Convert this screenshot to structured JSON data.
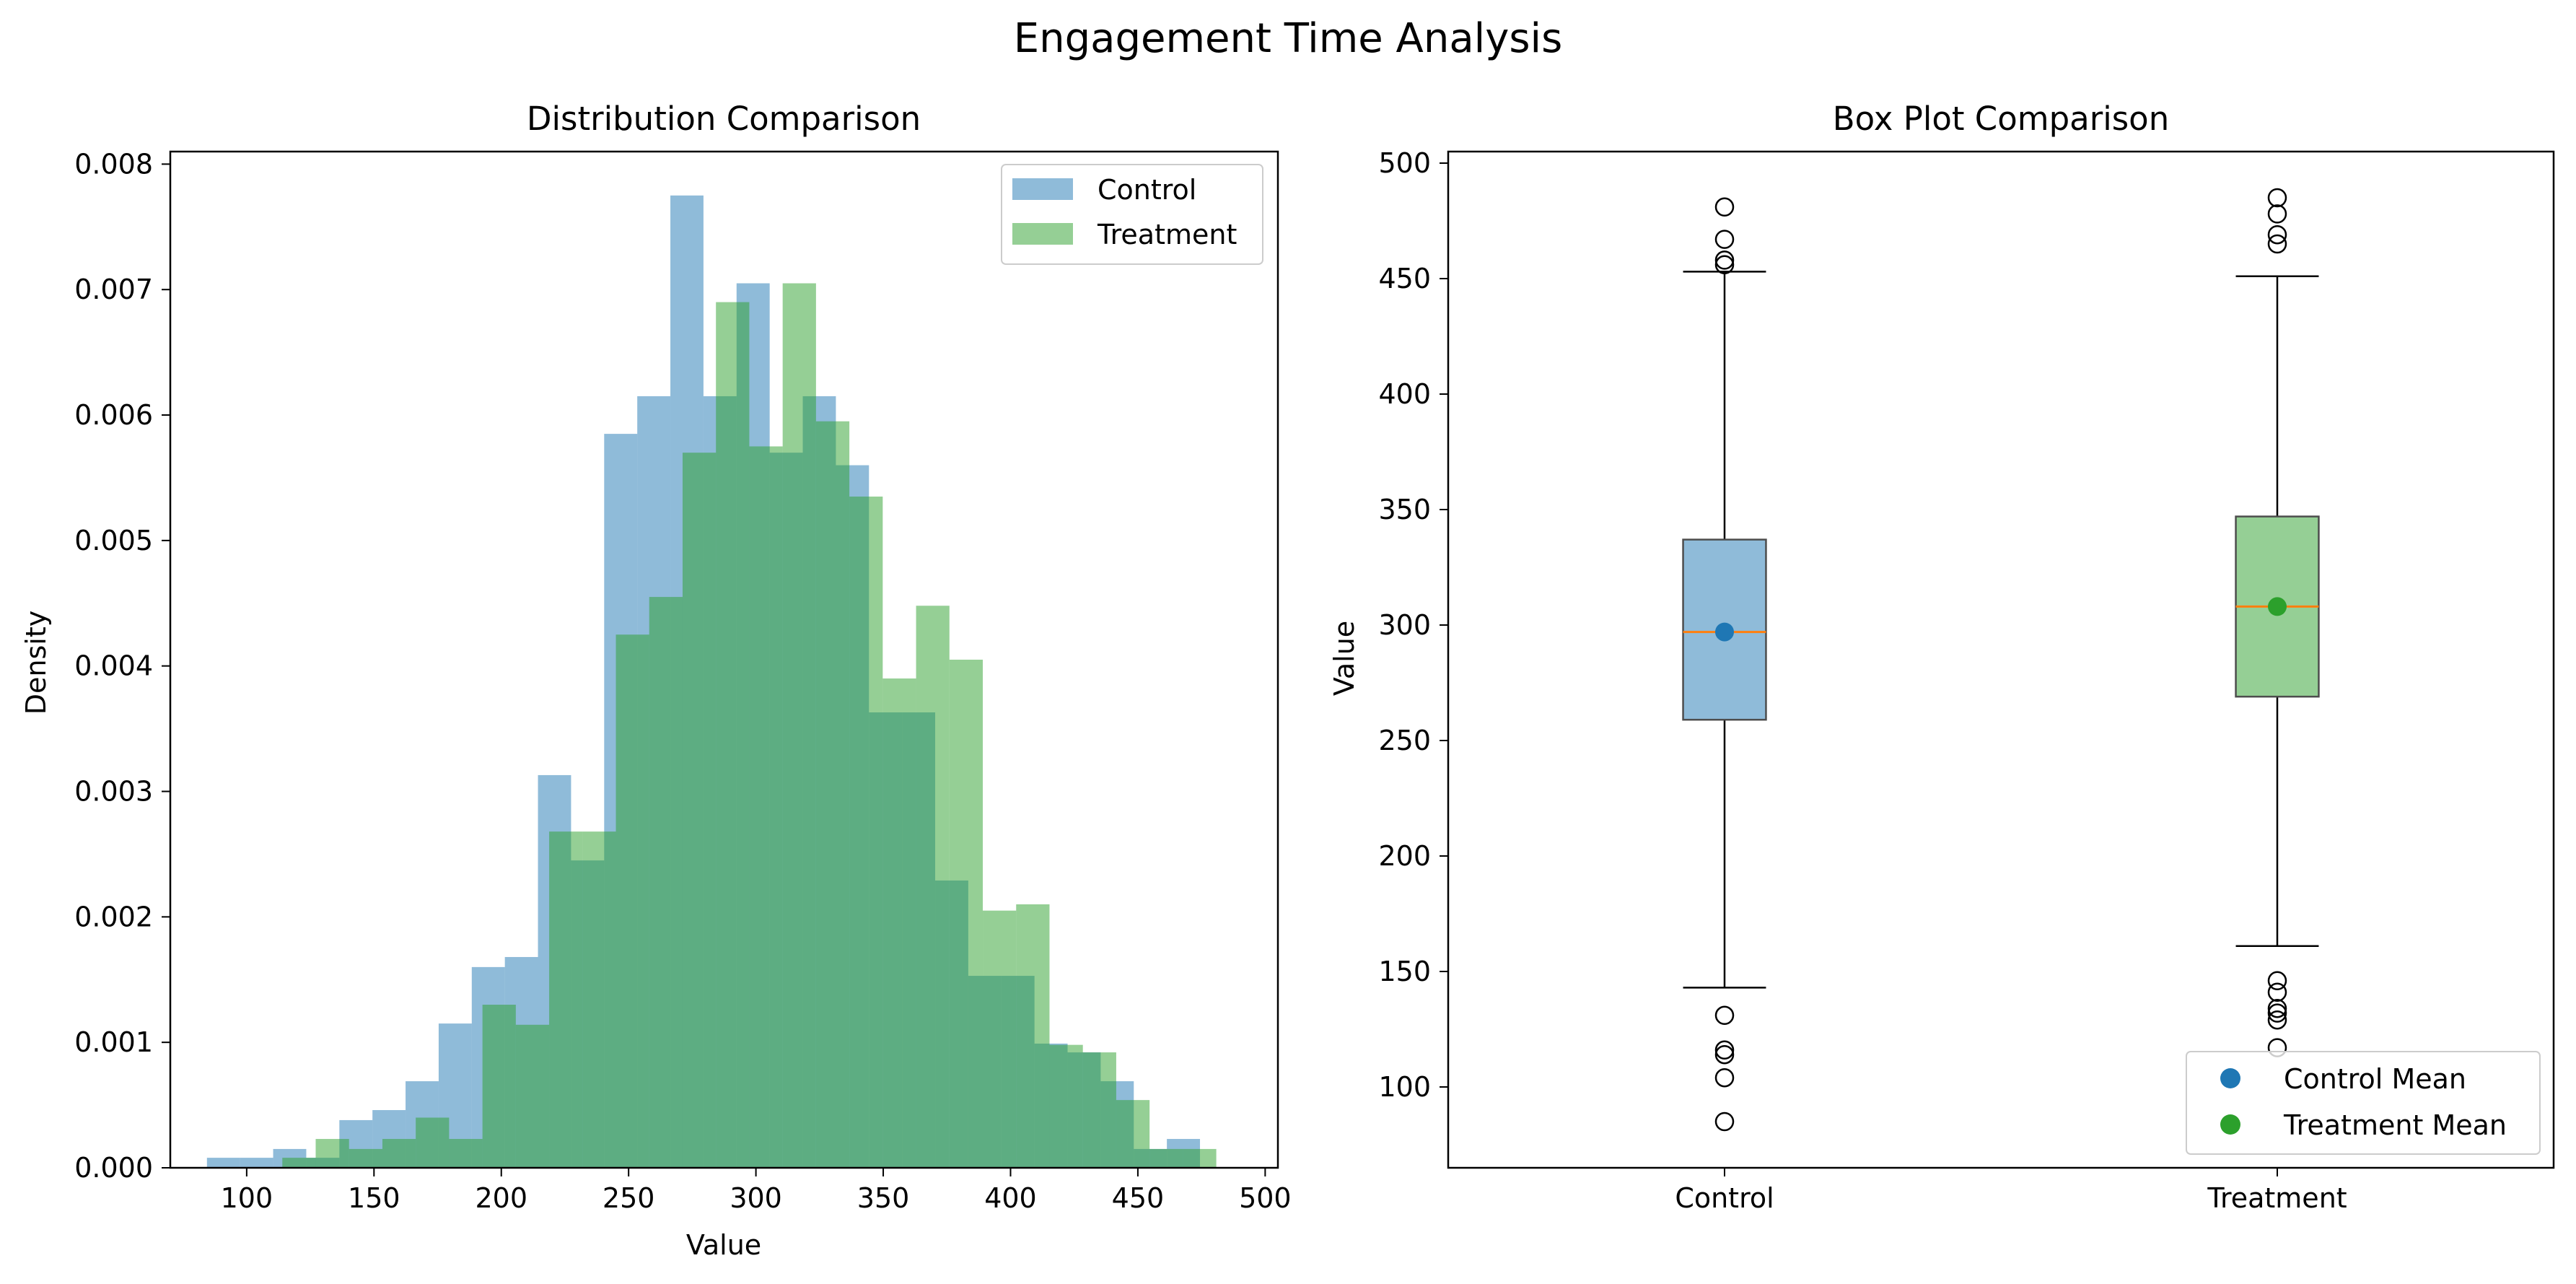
{
  "figure": {
    "title": "Engagement Time Analysis"
  },
  "colors": {
    "control": "#1f77b4",
    "treatment": "#2ca02c",
    "control_fill": "#8fbbd9",
    "treatment_fill": "#95cf95",
    "overlap": "#5bad80",
    "median": "#ff7f0e"
  },
  "chart_data": [
    {
      "type": "histogram",
      "title": "Distribution Comparison",
      "xlabel": "Value",
      "ylabel": "Density",
      "xlim": [
        70,
        505
      ],
      "ylim": [
        0,
        0.0081
      ],
      "xticks": [
        100,
        150,
        200,
        250,
        300,
        350,
        400,
        450,
        500
      ],
      "yticks": [
        0.0,
        0.001,
        0.002,
        0.003,
        0.004,
        0.005,
        0.006,
        0.007,
        0.008
      ],
      "ytick_labels": [
        "0.000",
        "0.001",
        "0.002",
        "0.003",
        "0.004",
        "0.005",
        "0.006",
        "0.007",
        "0.008"
      ],
      "grid": false,
      "legend": {
        "position": "top-right",
        "entries": [
          "Control",
          "Treatment"
        ]
      },
      "series": [
        {
          "name": "Control",
          "color_key": "control",
          "bins": [
            {
              "x0": 84.4,
              "x1": 97.4,
              "density": 8e-05
            },
            {
              "x0": 97.4,
              "x1": 110.4,
              "density": 8e-05
            },
            {
              "x0": 110.4,
              "x1": 123.4,
              "density": 0.00015
            },
            {
              "x0": 123.4,
              "x1": 136.4,
              "density": 8e-05
            },
            {
              "x0": 136.4,
              "x1": 149.4,
              "density": 0.00038
            },
            {
              "x0": 149.4,
              "x1": 162.4,
              "density": 0.00046
            },
            {
              "x0": 162.4,
              "x1": 175.4,
              "density": 0.00069
            },
            {
              "x0": 175.4,
              "x1": 188.4,
              "density": 0.00115
            },
            {
              "x0": 188.4,
              "x1": 201.4,
              "density": 0.0016
            },
            {
              "x0": 201.4,
              "x1": 214.4,
              "density": 0.00168
            },
            {
              "x0": 214.4,
              "x1": 227.4,
              "density": 0.00313
            },
            {
              "x0": 227.4,
              "x1": 240.4,
              "density": 0.00245
            },
            {
              "x0": 240.4,
              "x1": 253.4,
              "density": 0.00585
            },
            {
              "x0": 253.4,
              "x1": 266.4,
              "density": 0.00615
            },
            {
              "x0": 266.4,
              "x1": 279.4,
              "density": 0.00775
            },
            {
              "x0": 279.4,
              "x1": 292.4,
              "density": 0.00615
            },
            {
              "x0": 292.4,
              "x1": 305.4,
              "density": 0.00705
            },
            {
              "x0": 305.4,
              "x1": 318.4,
              "density": 0.0057
            },
            {
              "x0": 318.4,
              "x1": 331.4,
              "density": 0.00615
            },
            {
              "x0": 331.4,
              "x1": 344.4,
              "density": 0.0056
            },
            {
              "x0": 344.4,
              "x1": 357.4,
              "density": 0.00363
            },
            {
              "x0": 357.4,
              "x1": 370.4,
              "density": 0.00363
            },
            {
              "x0": 370.4,
              "x1": 383.4,
              "density": 0.00229
            },
            {
              "x0": 383.4,
              "x1": 396.4,
              "density": 0.00153
            },
            {
              "x0": 396.4,
              "x1": 409.4,
              "density": 0.00153
            },
            {
              "x0": 409.4,
              "x1": 422.4,
              "density": 0.00099
            },
            {
              "x0": 422.4,
              "x1": 435.4,
              "density": 0.00092
            },
            {
              "x0": 435.4,
              "x1": 448.4,
              "density": 0.00069
            },
            {
              "x0": 448.4,
              "x1": 461.4,
              "density": 0.00015
            },
            {
              "x0": 461.4,
              "x1": 474.4,
              "density": 0.00023
            }
          ]
        },
        {
          "name": "Treatment",
          "color_key": "treatment",
          "bins": [
            {
              "x0": 114.0,
              "x1": 127.1,
              "density": 8e-05
            },
            {
              "x0": 127.1,
              "x1": 140.2,
              "density": 0.00023
            },
            {
              "x0": 140.2,
              "x1": 153.3,
              "density": 0.00015
            },
            {
              "x0": 153.3,
              "x1": 166.4,
              "density": 0.00023
            },
            {
              "x0": 166.4,
              "x1": 179.5,
              "density": 0.0004
            },
            {
              "x0": 179.5,
              "x1": 192.6,
              "density": 0.00023
            },
            {
              "x0": 192.6,
              "x1": 205.7,
              "density": 0.0013
            },
            {
              "x0": 205.7,
              "x1": 218.8,
              "density": 0.00114
            },
            {
              "x0": 218.8,
              "x1": 231.9,
              "density": 0.00268
            },
            {
              "x0": 231.9,
              "x1": 245.0,
              "density": 0.00268
            },
            {
              "x0": 245.0,
              "x1": 258.1,
              "density": 0.00425
            },
            {
              "x0": 258.1,
              "x1": 271.2,
              "density": 0.00455
            },
            {
              "x0": 271.2,
              "x1": 284.3,
              "density": 0.0057
            },
            {
              "x0": 284.3,
              "x1": 297.4,
              "density": 0.0069
            },
            {
              "x0": 297.4,
              "x1": 310.5,
              "density": 0.00575
            },
            {
              "x0": 310.5,
              "x1": 323.6,
              "density": 0.00705
            },
            {
              "x0": 323.6,
              "x1": 336.7,
              "density": 0.00595
            },
            {
              "x0": 336.7,
              "x1": 349.8,
              "density": 0.00535
            },
            {
              "x0": 349.8,
              "x1": 362.9,
              "density": 0.0039
            },
            {
              "x0": 362.9,
              "x1": 376.0,
              "density": 0.00448
            },
            {
              "x0": 376.0,
              "x1": 389.1,
              "density": 0.00405
            },
            {
              "x0": 389.1,
              "x1": 402.2,
              "density": 0.00205
            },
            {
              "x0": 402.2,
              "x1": 415.3,
              "density": 0.0021
            },
            {
              "x0": 415.3,
              "x1": 428.4,
              "density": 0.00098
            },
            {
              "x0": 428.4,
              "x1": 441.5,
              "density": 0.00092
            },
            {
              "x0": 441.5,
              "x1": 454.6,
              "density": 0.00054
            },
            {
              "x0": 454.6,
              "x1": 467.7,
              "density": 0.00015
            },
            {
              "x0": 467.7,
              "x1": 480.8,
              "density": 0.00015
            }
          ]
        }
      ]
    },
    {
      "type": "box",
      "title": "Box Plot Comparison",
      "xlabel": "",
      "ylabel": "Value",
      "categories": [
        "Control",
        "Treatment"
      ],
      "ylim": [
        65,
        505
      ],
      "yticks": [
        100,
        150,
        200,
        250,
        300,
        350,
        400,
        450,
        500
      ],
      "grid": false,
      "legend": {
        "position": "lower-right",
        "entries": [
          "Control Mean",
          "Treatment Mean"
        ]
      },
      "boxes": [
        {
          "name": "Control",
          "color_key": "control",
          "whisker_low": 143,
          "q1": 259,
          "median": 297,
          "q3": 337,
          "whisker_high": 453,
          "mean": 297,
          "outliers": [
            85,
            104,
            114,
            116,
            131,
            456,
            458,
            467,
            481
          ]
        },
        {
          "name": "Treatment",
          "color_key": "treatment",
          "whisker_low": 161,
          "q1": 269,
          "median": 308,
          "q3": 347,
          "whisker_high": 451,
          "mean": 308,
          "outliers": [
            117,
            129,
            132,
            134,
            141,
            146,
            465,
            469,
            478,
            485
          ]
        }
      ]
    }
  ]
}
